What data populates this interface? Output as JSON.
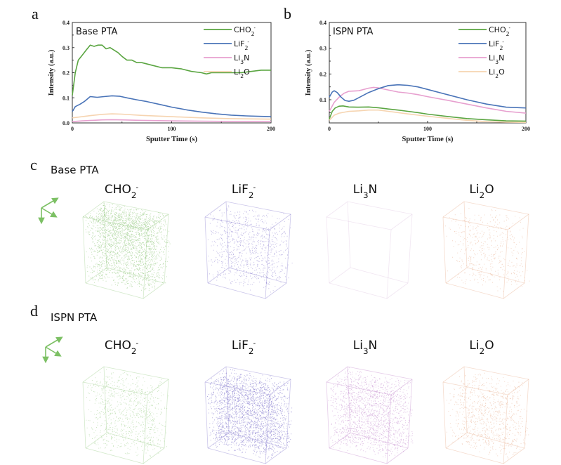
{
  "figure": {
    "panels": {
      "a": "a",
      "b": "b",
      "c": "c",
      "d": "d"
    },
    "row_c_title": "Base PTA",
    "row_d_title": "ISPN PTA",
    "species": [
      {
        "base": "CHO",
        "sub": "2",
        "sup": "-",
        "color": "#5aa541",
        "cube_color": "#82c06a"
      },
      {
        "base": "LiF",
        "sub": "2",
        "sup": "-",
        "color": "#4a74b8",
        "cube_color": "#6a5cc2"
      },
      {
        "base": "Li",
        "sub": "3",
        "tail": "N",
        "color": "#e7a0cf",
        "cube_color": "#b46cc0"
      },
      {
        "base": "Li",
        "sub": "2",
        "tail": "O",
        "color": "#f6d4b0",
        "cube_color": "#e39a72"
      }
    ],
    "cube_density": {
      "c": [
        0.95,
        0.35,
        0.0,
        0.18
      ],
      "d": [
        0.35,
        0.95,
        0.65,
        0.35
      ]
    },
    "axis_icon": "xyz-axis-triad-icon"
  },
  "chart_data": [
    {
      "type": "line",
      "panel": "a",
      "title": "Base PTA",
      "xlabel": "Sputter Time (s)",
      "ylabel": "Intensity (a.u.)",
      "xlim": [
        0,
        200
      ],
      "ylim": [
        0.0,
        0.4
      ],
      "xticks": [
        "0",
        "100",
        "200"
      ],
      "yticks": [
        "0.0",
        "0.1",
        "0.2",
        "0.3",
        "0.4"
      ],
      "grid": false,
      "legend_position": "top-right",
      "series": [
        {
          "name": "CHO2-",
          "x": [
            0,
            3,
            6,
            10,
            14,
            18,
            22,
            26,
            30,
            34,
            38,
            42,
            46,
            50,
            55,
            60,
            65,
            70,
            80,
            90,
            100,
            110,
            120,
            130,
            135,
            140,
            150,
            160,
            170,
            180,
            190,
            200
          ],
          "y": [
            0.11,
            0.2,
            0.25,
            0.27,
            0.29,
            0.31,
            0.305,
            0.31,
            0.31,
            0.295,
            0.3,
            0.29,
            0.28,
            0.265,
            0.25,
            0.25,
            0.24,
            0.24,
            0.23,
            0.22,
            0.22,
            0.215,
            0.205,
            0.2,
            0.195,
            0.2,
            0.2,
            0.2,
            0.2,
            0.205,
            0.21,
            0.21
          ]
        },
        {
          "name": "LiF2-",
          "x": [
            0,
            3,
            8,
            12,
            18,
            25,
            32,
            40,
            48,
            55,
            65,
            75,
            90,
            100,
            115,
            130,
            145,
            160,
            175,
            190,
            200
          ],
          "y": [
            0.045,
            0.065,
            0.075,
            0.085,
            0.105,
            0.102,
            0.105,
            0.108,
            0.106,
            0.1,
            0.092,
            0.085,
            0.072,
            0.063,
            0.052,
            0.043,
            0.036,
            0.031,
            0.028,
            0.026,
            0.025
          ]
        },
        {
          "name": "Li3N",
          "x": [
            0,
            10,
            20,
            30,
            40,
            50,
            70,
            100,
            130,
            160,
            200
          ],
          "y": [
            0.005,
            0.008,
            0.01,
            0.012,
            0.013,
            0.012,
            0.01,
            0.008,
            0.007,
            0.006,
            0.005
          ]
        },
        {
          "name": "Li2O",
          "x": [
            0,
            10,
            20,
            30,
            40,
            50,
            70,
            100,
            130,
            160,
            200
          ],
          "y": [
            0.02,
            0.025,
            0.03,
            0.034,
            0.036,
            0.035,
            0.03,
            0.025,
            0.02,
            0.017,
            0.015
          ]
        }
      ]
    },
    {
      "type": "line",
      "panel": "b",
      "title": "ISPN PTA",
      "xlabel": "Sputter Time (s)",
      "ylabel": "Intensity (a.u.)",
      "xlim": [
        0,
        200
      ],
      "ylim": [
        0.01,
        0.4
      ],
      "xticks": [
        "0",
        "100",
        "200"
      ],
      "yticks": [
        "0.1",
        "0.2",
        "0.3",
        "0.4"
      ],
      "grid": false,
      "legend_position": "top-right",
      "series": [
        {
          "name": "CHO2-",
          "x": [
            0,
            3,
            6,
            10,
            14,
            20,
            30,
            40,
            50,
            60,
            70,
            80,
            90,
            100,
            120,
            140,
            160,
            180,
            200
          ],
          "y": [
            0.025,
            0.055,
            0.068,
            0.075,
            0.076,
            0.072,
            0.071,
            0.072,
            0.069,
            0.064,
            0.06,
            0.055,
            0.05,
            0.044,
            0.035,
            0.027,
            0.022,
            0.018,
            0.017
          ]
        },
        {
          "name": "LiF2-",
          "x": [
            0,
            3,
            5,
            8,
            12,
            16,
            20,
            25,
            30,
            40,
            50,
            60,
            70,
            80,
            90,
            100,
            120,
            140,
            160,
            180,
            200
          ],
          "y": [
            0.11,
            0.13,
            0.135,
            0.128,
            0.11,
            0.097,
            0.094,
            0.098,
            0.108,
            0.128,
            0.143,
            0.155,
            0.158,
            0.156,
            0.15,
            0.14,
            0.12,
            0.1,
            0.083,
            0.071,
            0.068
          ]
        },
        {
          "name": "Li3N",
          "x": [
            0,
            5,
            10,
            15,
            20,
            30,
            40,
            45,
            50,
            60,
            70,
            80,
            90,
            100,
            120,
            140,
            160,
            180,
            200
          ],
          "y": [
            0.055,
            0.09,
            0.11,
            0.125,
            0.133,
            0.135,
            0.145,
            0.148,
            0.146,
            0.138,
            0.13,
            0.126,
            0.12,
            0.112,
            0.098,
            0.083,
            0.068,
            0.055,
            0.048
          ]
        },
        {
          "name": "Li2O",
          "x": [
            0,
            5,
            10,
            20,
            30,
            40,
            50,
            60,
            70,
            80,
            100,
            120,
            140,
            160,
            180,
            200
          ],
          "y": [
            0.02,
            0.04,
            0.048,
            0.055,
            0.057,
            0.06,
            0.06,
            0.055,
            0.05,
            0.045,
            0.036,
            0.028,
            0.02,
            0.015,
            0.013,
            0.012
          ]
        }
      ]
    }
  ]
}
